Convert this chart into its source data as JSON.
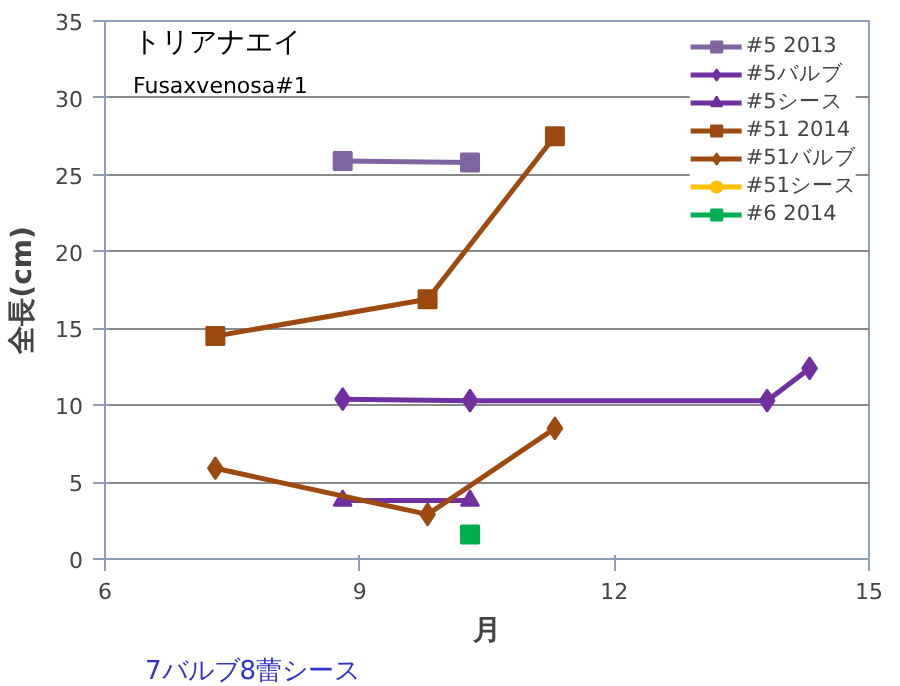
{
  "chart_data": {
    "type": "line",
    "xlabel": "月",
    "ylabel": "全長(cm)",
    "annotations": [
      "トリアナエイ",
      "Fusaxvenosa#1",
      "7バルブ8蕾シース"
    ],
    "xlim": [
      6,
      15
    ],
    "xticks": [
      6,
      9,
      12,
      15
    ],
    "ylim": [
      0,
      35
    ],
    "yticks": [
      0,
      5,
      10,
      15,
      20,
      25,
      30,
      35
    ],
    "grid": "y",
    "legend": "top right",
    "series": [
      {
        "name": "#5 2013",
        "color": "#8064a2",
        "marker": "square",
        "x": [
          8.8,
          10.3
        ],
        "values": [
          25.9,
          25.8
        ]
      },
      {
        "name": "#5バルブ",
        "color": "#7030a0",
        "marker": "diamond",
        "x": [
          8.8,
          10.3,
          13.8,
          14.3
        ],
        "values": [
          10.4,
          10.3,
          10.3,
          12.4
        ]
      },
      {
        "name": "#5シース",
        "color": "#7030a0",
        "marker": "triangle",
        "x": [
          8.8,
          10.3
        ],
        "values": [
          3.8,
          3.8
        ]
      },
      {
        "name": "#51 2014",
        "color": "#9c4a10",
        "marker": "square",
        "x": [
          7.3,
          9.8,
          11.3
        ],
        "values": [
          14.5,
          16.9,
          27.5
        ]
      },
      {
        "name": "#51バルブ",
        "color": "#9c4a10",
        "marker": "diamond",
        "x": [
          7.3,
          9.8,
          11.3
        ],
        "values": [
          5.9,
          2.9,
          8.5
        ]
      },
      {
        "name": "#51シース",
        "color": "#ffc000",
        "marker": "circle"
      },
      {
        "name": "#6 2014",
        "color": "#00b050",
        "marker": "square",
        "x": [
          10.3
        ],
        "values": [
          1.6
        ]
      }
    ]
  }
}
